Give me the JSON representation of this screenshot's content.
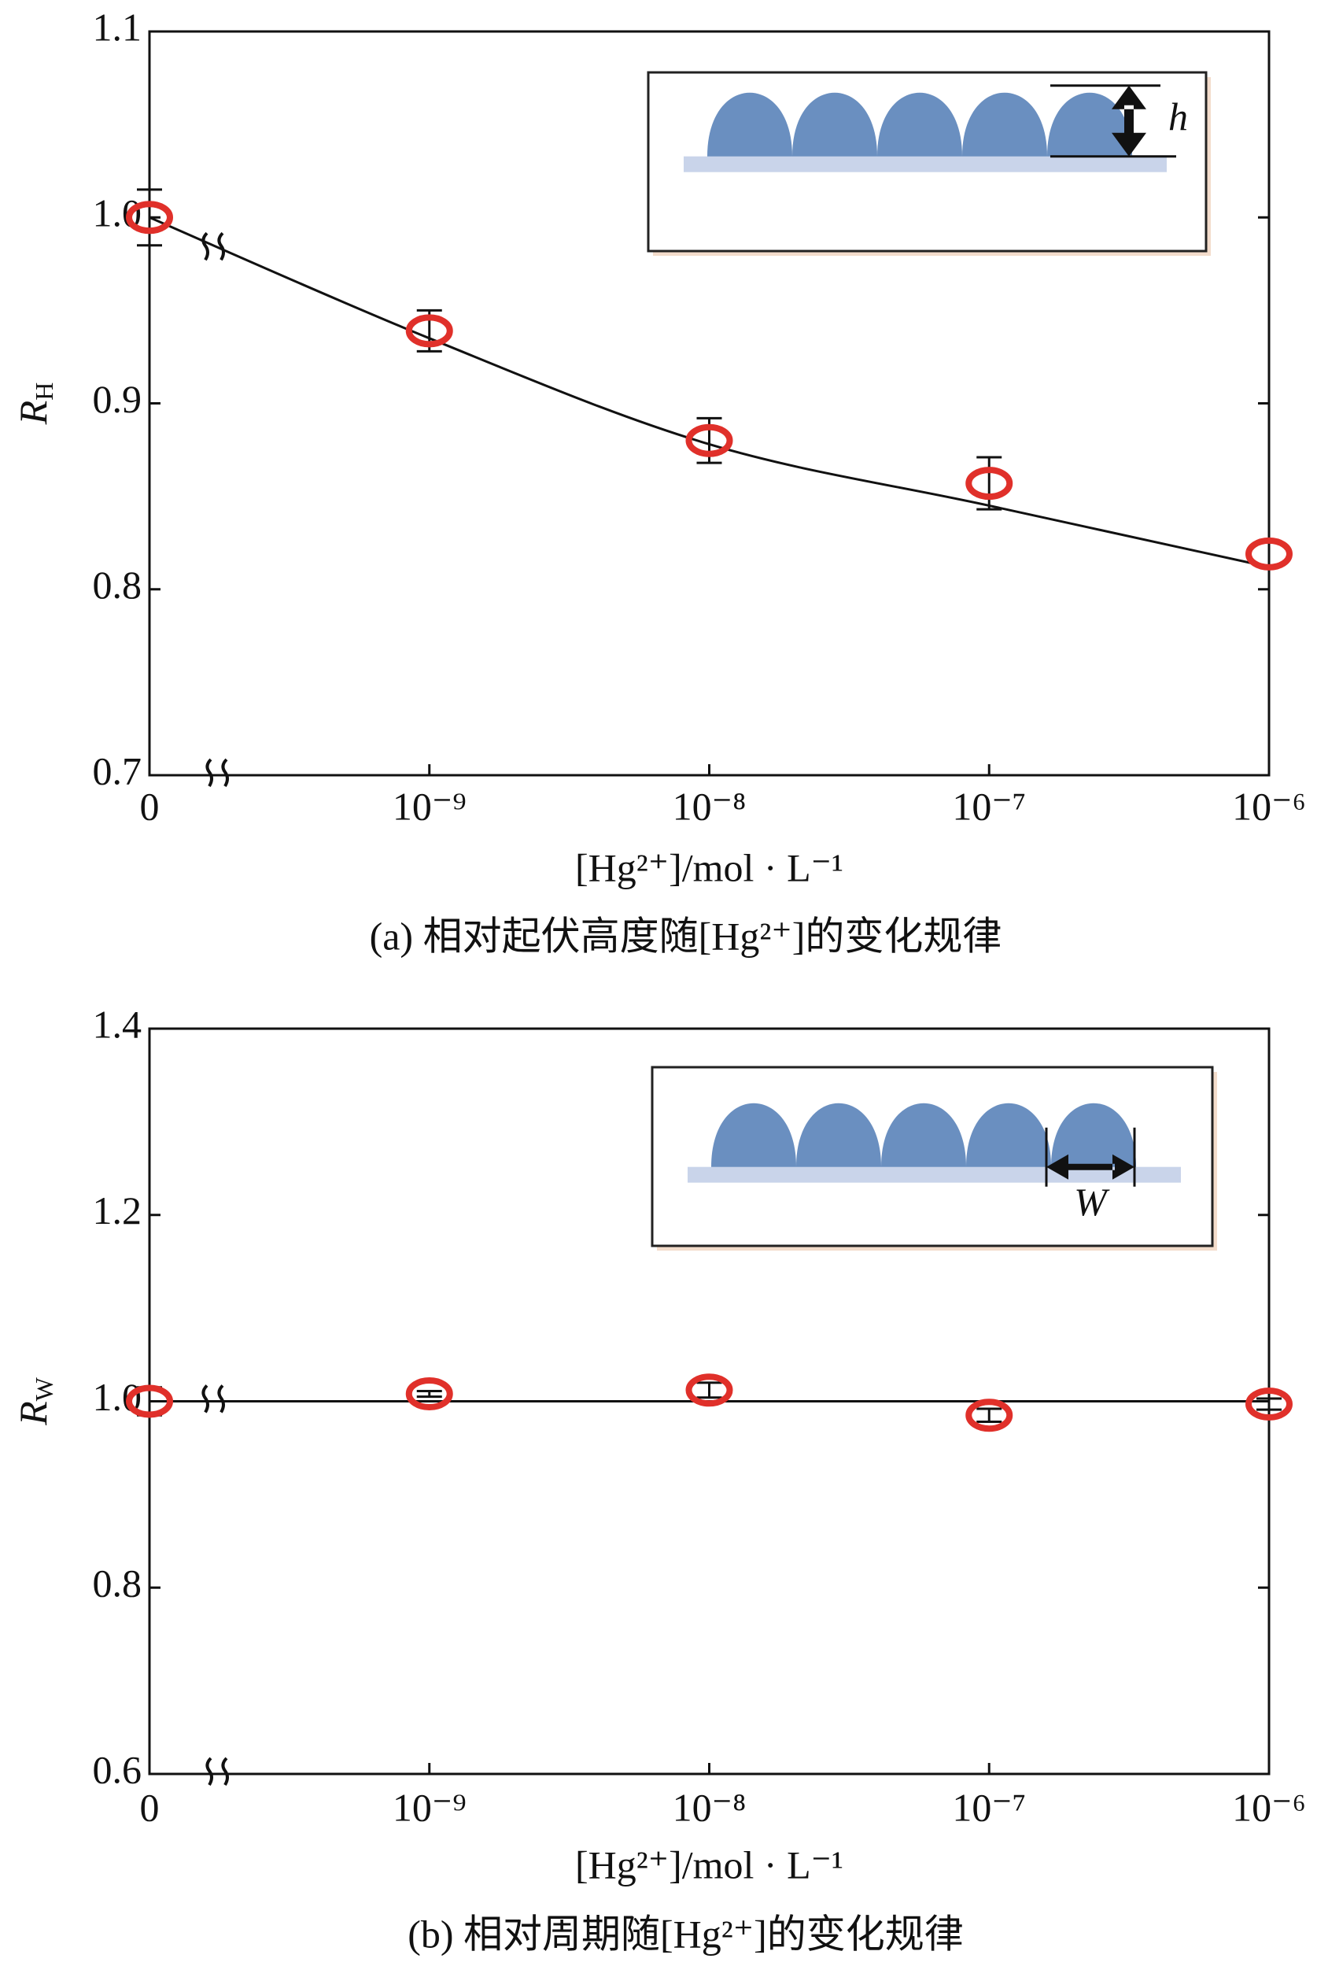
{
  "chart_data": [
    {
      "type": "scatter",
      "categories": [
        "0",
        "10⁻⁹",
        "10⁻⁸",
        "10⁻⁷",
        "10⁻⁶"
      ],
      "values": [
        1.0,
        0.939,
        0.88,
        0.857,
        0.819
      ],
      "errors": [
        0.015,
        0.011,
        0.012,
        0.014,
        0
      ],
      "fit_values": [
        1.0,
        0.935,
        0.878,
        0.845,
        0.812
      ],
      "color": "#e0302a",
      "ylim": [
        0.7,
        1.1
      ],
      "yticks": [
        0.7,
        0.8,
        0.9,
        {
          "value": 1,
          "label": "1.0"
        },
        1.1
      ],
      "y_label": "R",
      "y_label_sub": "H",
      "x_label": "[Hg²⁺]/mol · L⁻¹",
      "caption": "(a) 相对起伏高度随[Hg²⁺]的变化规律",
      "inset_label": "h"
    },
    {
      "type": "scatter",
      "categories": [
        "0",
        "10⁻⁹",
        "10⁻⁸",
        "10⁻⁷",
        "10⁻⁶"
      ],
      "values": [
        1.0,
        1.008,
        1.012,
        0.985,
        0.997
      ],
      "errors": [
        0.015,
        0.003,
        0.008,
        0.007,
        0.006
      ],
      "fit_values": [
        1.0,
        1.0,
        1.0,
        1.0,
        1.0
      ],
      "color": "#e0302a",
      "ylim": [
        0.6,
        1.4
      ],
      "yticks": [
        0.6,
        0.8,
        {
          "value": 1,
          "label": "1.0"
        },
        1.2,
        1.4
      ],
      "y_label": "R",
      "y_label_sub": "W",
      "x_label": "[Hg²⁺]/mol · L⁻¹",
      "caption": "(b) 相对周期随[Hg²⁺]的变化规律",
      "inset_label": "W"
    }
  ]
}
